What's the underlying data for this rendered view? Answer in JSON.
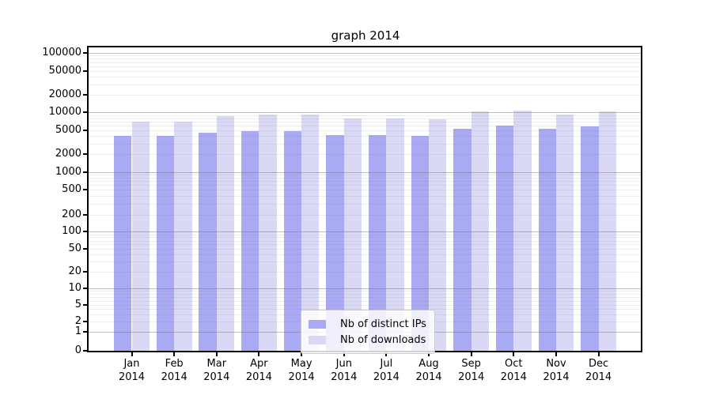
{
  "title": "graph 2014",
  "chart_data": {
    "type": "bar",
    "title": "graph 2014",
    "categories": [
      "Jan",
      "Feb",
      "Mar",
      "Apr",
      "May",
      "Jun",
      "Jul",
      "Aug",
      "Sep",
      "Oct",
      "Nov",
      "Dec"
    ],
    "category_year": "2014",
    "series": [
      {
        "name": "Nb of distinct IPs",
        "color": "#a9a9f4",
        "values": [
          4100,
          4000,
          4600,
          4800,
          4900,
          4200,
          4200,
          4000,
          5400,
          6100,
          5400,
          5800
        ]
      },
      {
        "name": "Nb of downloads",
        "color": "#d9d9f6",
        "values": [
          7000,
          7100,
          8600,
          9100,
          9100,
          7800,
          8000,
          7700,
          10300,
          10900,
          9300,
          10300
        ]
      }
    ],
    "y_ticks": [
      0,
      1,
      2,
      5,
      10,
      20,
      50,
      100,
      200,
      500,
      1000,
      2000,
      5000,
      10000,
      20000,
      50000,
      100000
    ],
    "ylim": [
      0,
      123000
    ],
    "y_scale": "log-with-zero",
    "grid": true,
    "legend_position": "bottom-center"
  }
}
